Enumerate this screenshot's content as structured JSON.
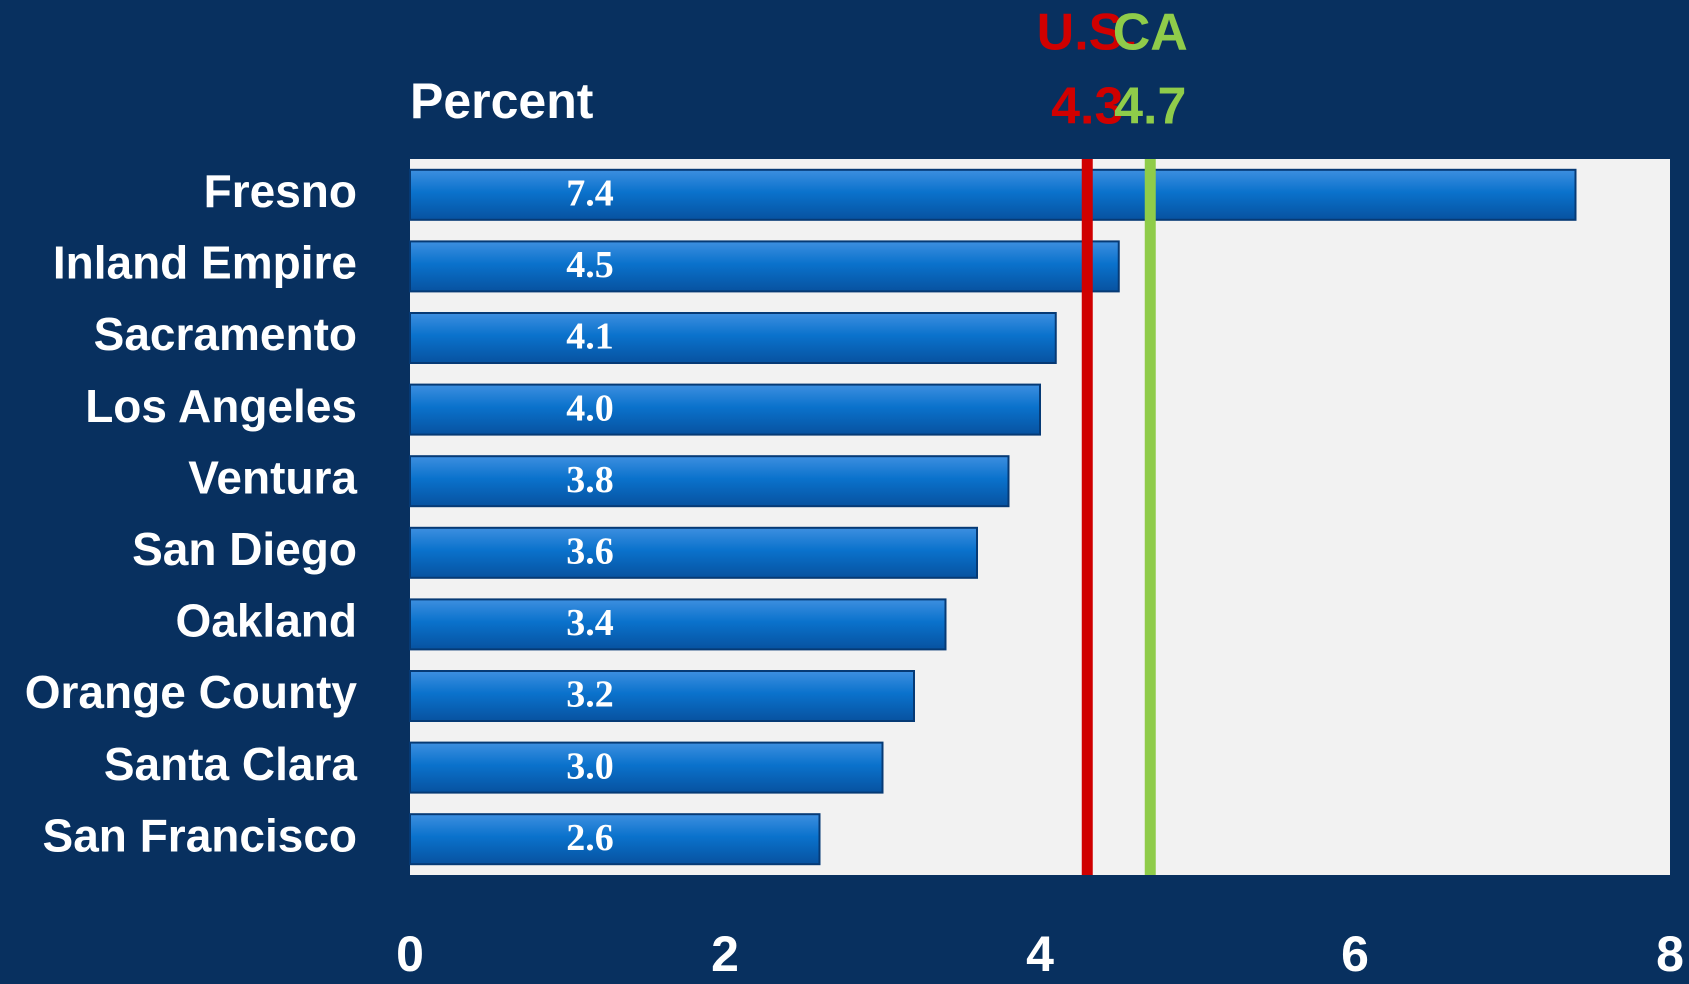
{
  "chart_data": {
    "type": "bar",
    "orientation": "horizontal",
    "y_axis_label": "Percent",
    "categories": [
      "Fresno",
      "Inland Empire",
      "Sacramento",
      "Los Angeles",
      "Ventura",
      "San Diego",
      "Oakland",
      "Orange County",
      "Santa Clara",
      "San Francisco"
    ],
    "values": [
      7.4,
      4.5,
      4.1,
      4.0,
      3.8,
      3.6,
      3.4,
      3.2,
      3.0,
      2.6
    ],
    "value_labels": [
      "7.4",
      "4.5",
      "4.1",
      "4.0",
      "3.8",
      "3.6",
      "3.4",
      "3.2",
      "3.0",
      "2.6"
    ],
    "color": "#0a72cc",
    "xlim": [
      0,
      8
    ],
    "xticks": [
      0,
      2,
      4,
      6,
      8
    ],
    "reference_lines": [
      {
        "name": "U.S.",
        "value": 4.3,
        "color": "#d00000"
      },
      {
        "name": "CA",
        "value": 4.7,
        "color": "#8fcc4a"
      }
    ]
  }
}
